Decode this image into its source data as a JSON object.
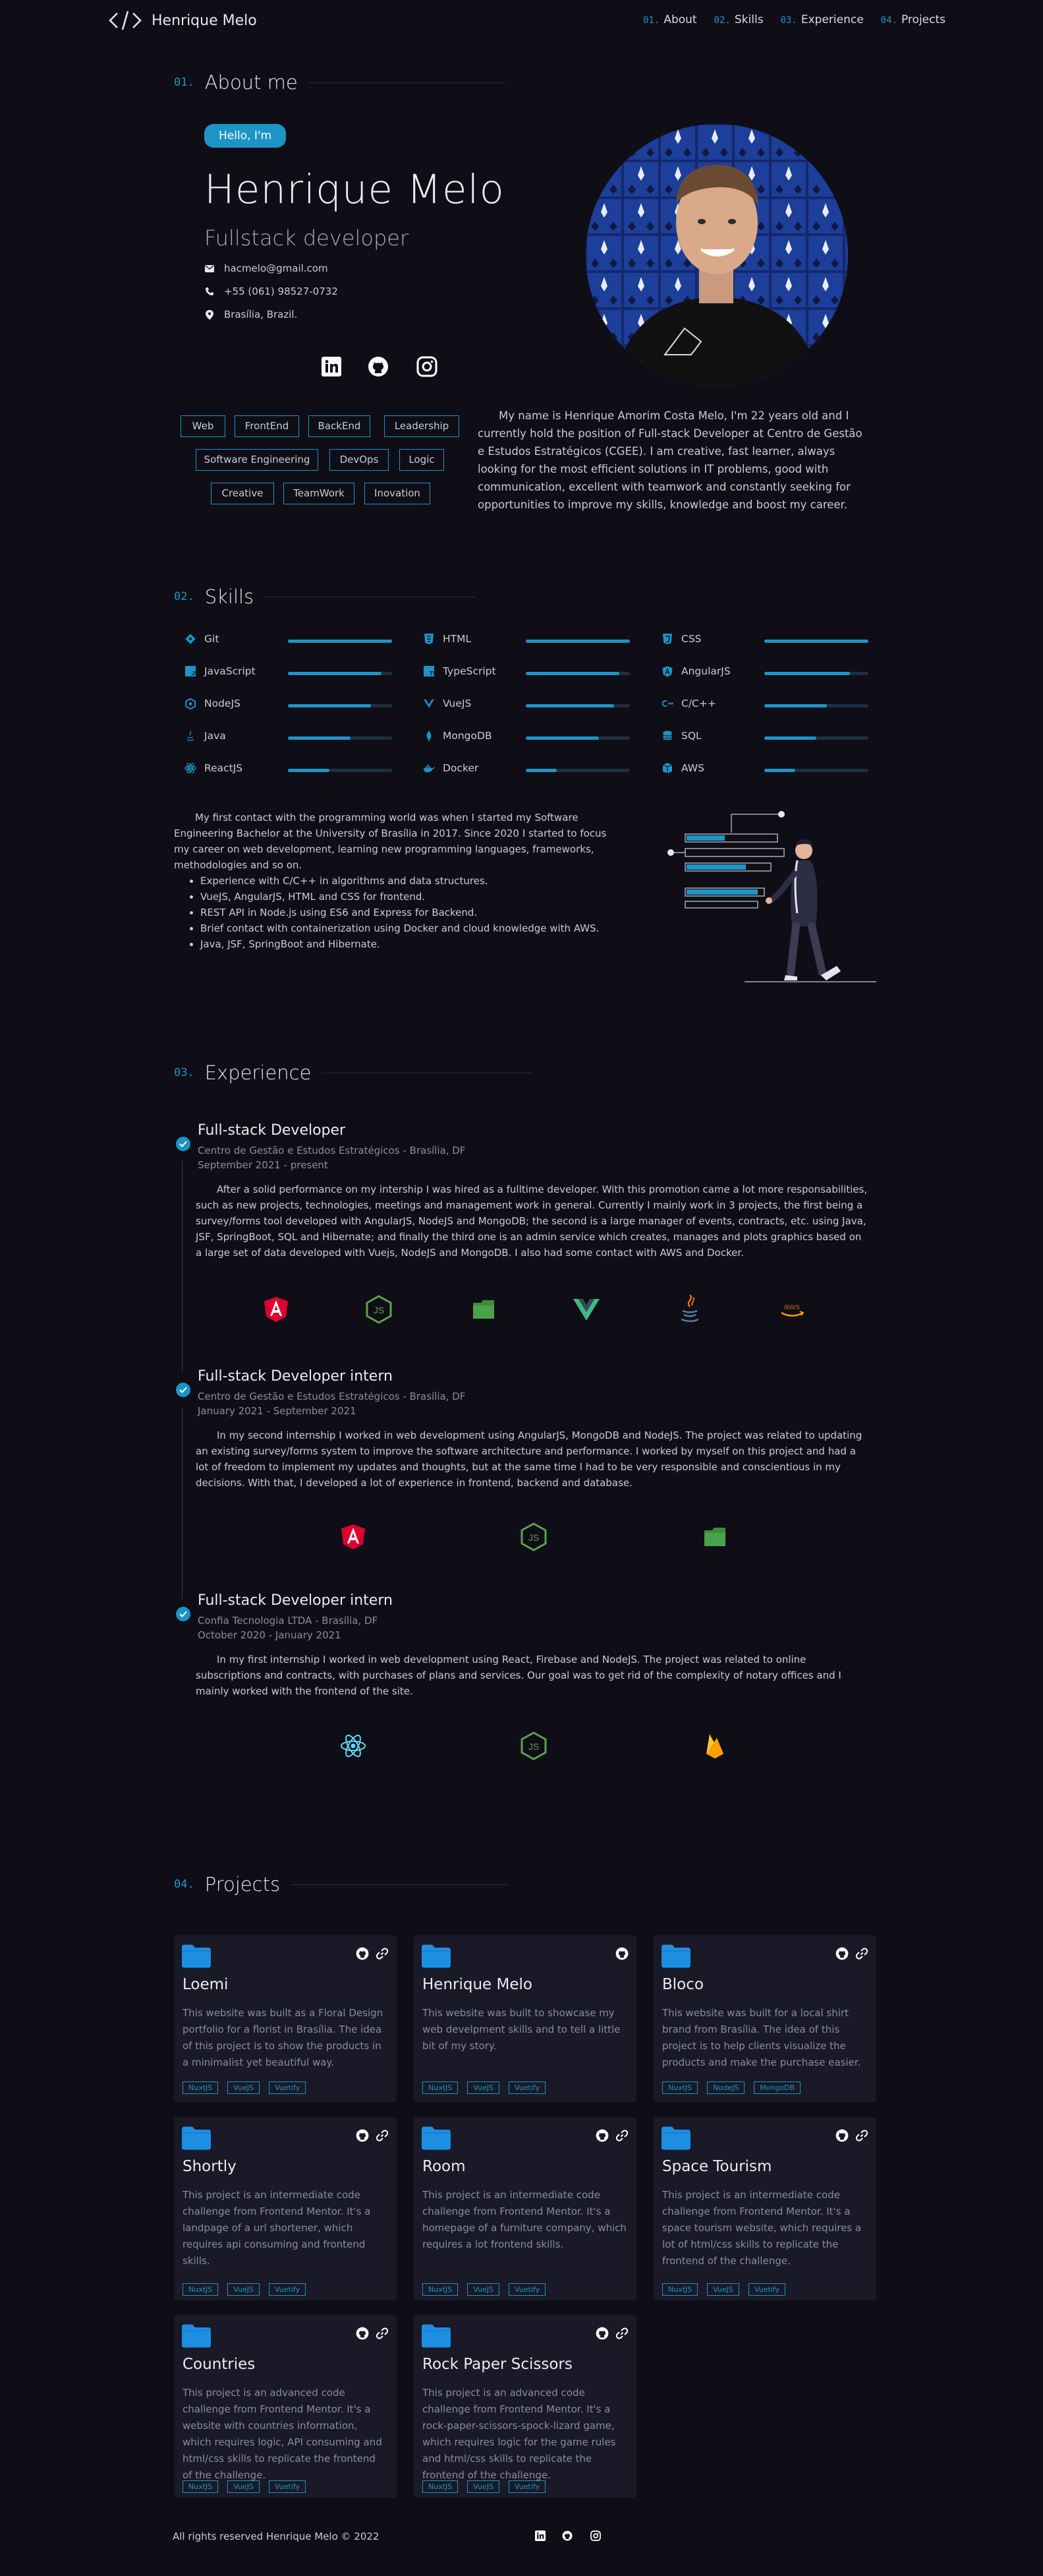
{
  "nav": {
    "brand": "Henrique Melo",
    "links": [
      {
        "num": "01.",
        "label": "About"
      },
      {
        "num": "02.",
        "label": "Skills"
      },
      {
        "num": "03.",
        "label": "Experience"
      },
      {
        "num": "04.",
        "label": "Projects"
      }
    ]
  },
  "about": {
    "num": "01.",
    "title": "About me",
    "hello": "Hello, I'm",
    "name": "Henrique Melo",
    "role": "Fullstack developer",
    "contacts": [
      {
        "icon": "mail-icon",
        "text": "hacmelo@gmail.com"
      },
      {
        "icon": "phone-icon",
        "text": "+55 (061) 98527-0732"
      },
      {
        "icon": "location-icon",
        "text": "Brasília, Brazil."
      }
    ],
    "social": [
      "linkedin-icon",
      "github-icon",
      "instagram-icon"
    ],
    "tags": [
      "Web",
      "FrontEnd",
      "BackEnd",
      "Leadership",
      "Software Engineering",
      "DevOps",
      "Logic",
      "Creative",
      "TeamWork",
      "Inovation"
    ],
    "bio": "My name is Henrique Amorim Costa Melo, I'm 22 years old and I currently hold the position of Full-stack Developer at Centro de Gestão e Estudos Estratégicos (CGEE). I am creative, fast learner, always looking for the most efficient solutions in IT problems, good with communication, excellent with teamwork and constantly seeking for opportunities to improve my skills, knowledge and boost my career."
  },
  "skills": {
    "num": "02.",
    "title": "Skills",
    "items": [
      {
        "name": "Git",
        "icon": "git-icon",
        "level": 1.0
      },
      {
        "name": "HTML",
        "icon": "html-icon",
        "level": 1.0
      },
      {
        "name": "CSS",
        "icon": "css-icon",
        "level": 1.0
      },
      {
        "name": "JavaScript",
        "icon": "javascript-icon",
        "level": 0.9
      },
      {
        "name": "TypeScript",
        "icon": "typescript-icon",
        "level": 0.9
      },
      {
        "name": "AngularJS",
        "icon": "angular-icon",
        "level": 0.82
      },
      {
        "name": "NodeJS",
        "icon": "nodejs-icon",
        "level": 0.8
      },
      {
        "name": "VueJS",
        "icon": "vue-icon",
        "level": 0.85
      },
      {
        "name": "C/C++",
        "icon": "cpp-icon",
        "level": 0.6
      },
      {
        "name": "Java",
        "icon": "java-icon",
        "level": 0.6
      },
      {
        "name": "MongoDB",
        "icon": "mongodb-icon",
        "level": 0.7
      },
      {
        "name": "SQL",
        "icon": "database-icon",
        "level": 0.5
      },
      {
        "name": "ReactJS",
        "icon": "react-icon",
        "level": 0.4
      },
      {
        "name": "Docker",
        "icon": "docker-icon",
        "level": 0.3
      },
      {
        "name": "AWS",
        "icon": "aws-icon",
        "level": 0.3
      }
    ],
    "intro": "My first contact with the programming world was when I started my Software Engineering Bachelor at the University of Brasília in 2017. Since 2020 I started to focus my career on web development, learning new programming languages, frameworks, methodologies and so on.",
    "bullets": [
      "Experience with C/C++ in algorithms and data structures.",
      "VueJS, AngularJS, HTML and CSS for frontend.",
      "REST API in Node.js using ES6 and Express for Backend.",
      "Brief contact with containerization using Docker and cloud knowledge with AWS.",
      "Java, JSF, SpringBoot and Hibernate."
    ]
  },
  "experience": {
    "num": "03.",
    "title": "Experience",
    "jobs": [
      {
        "title": "Full-stack Developer",
        "company": "Centro de Gestão e Estudos Estratégicos - Brasília, DF",
        "period": "September 2021 - present",
        "text": "After a solid performance on my intership I was hired as a fulltime developer. With this promotion came a lot more responsabilities, such as new projects, technologies, meetings and management work in general. Currently I mainly work in 3 projects, the first being a survey/forms tool developed with AngularJS, NodeJS and MongoDB; the second is a large manager of events, contracts, etc. using Java, JSF, SpringBoot, SQL and Hibernate; and finally the third one is an admin service which creates, manages and plots graphics based on a large set of data developed with Vuejs, NodeJS and MongoDB. I also had some contact with AWS and Docker.",
        "tech": [
          "angular-icon",
          "nodejs-icon",
          "mongodb-icon",
          "vue-icon",
          "java-icon",
          "aws-icon"
        ]
      },
      {
        "title": "Full-stack Developer intern",
        "company": "Centro de Gestão e Estudos Estratégicos - Brasília, DF",
        "period": "January 2021 - September 2021",
        "text": "In my second internship I worked in web development using AngularJS, MongoDB and NodeJS. The project was related to updating an existing survey/forms system to improve the software architecture and performance. I worked by myself on this project and had a lot of freedom to implement my updates and thoughts, but at the same time I had to be very responsible and conscientious in my decisions. With that, I developed a lot of experience in frontend, backend and database.",
        "tech": [
          "angular-icon",
          "nodejs-icon",
          "mongodb-icon"
        ]
      },
      {
        "title": "Full-stack Developer intern",
        "company": "Confia Tecnologia LTDA - Brasília, DF",
        "period": "October 2020 - January 2021",
        "text": "In my first internship I worked in web development using React, Firebase and NodeJS. The project was related to online subscriptions and contracts, with purchases of plans and services. Our goal was to get rid of the complexity of notary offices and I mainly worked with the frontend of the site.",
        "tech": [
          "react-icon",
          "nodejs-icon",
          "firebase-icon"
        ]
      }
    ]
  },
  "projects": {
    "num": "04.",
    "title": "Projects",
    "items": [
      {
        "title": "Loemi",
        "desc": "This website was built as a Floral Design portfolio for a florist in Brasília. The idea of this project is to show the products in a minimalist yet beautiful way.",
        "tech": [
          "NuxtJS",
          "VueJS",
          "Vuetify"
        ],
        "links": 2
      },
      {
        "title": "Henrique Melo",
        "desc": "This website was built to showcase my web develpment skills and to tell a little bit of my story.",
        "tech": [
          "NuxtJS",
          "VueJS",
          "Vuetify"
        ],
        "links": 1
      },
      {
        "title": "Bloco",
        "desc": "This website was built for a local shirt brand from Brasília. The idea of this project is to help clients visualize the products and make the purchase easier.",
        "tech": [
          "NuxtJS",
          "NodeJS",
          "MongoDB"
        ],
        "links": 2
      },
      {
        "title": "Shortly",
        "desc": "This project is an intermediate code challenge from Frontend Mentor. It's a landpage of a url shortener, which requires api consuming and frontend skills.",
        "tech": [
          "NuxtJS",
          "VueJS",
          "Vuetify"
        ],
        "links": 2
      },
      {
        "title": "Room",
        "desc": "This project is an intermediate code challenge from Frontend Mentor. It's a homepage of a furniture company, which requires a lot frontend skills.",
        "tech": [
          "NuxtJS",
          "VueJS",
          "Vuetify"
        ],
        "links": 2
      },
      {
        "title": "Space Tourism",
        "desc": "This project is an intermediate code challenge from Frontend Mentor. It's a space tourism website, which requires a lot of html/css skills to replicate the frontend of the challenge.",
        "tech": [
          "NuxtJS",
          "VueJS",
          "Vuetify"
        ],
        "links": 2
      },
      {
        "title": "Countries",
        "desc": "This project is an advanced code challenge from Frontend Mentor. It's a website with countries information, which requires logic, API consuming and html/css skills to replicate the frontend of the challenge.",
        "tech": [
          "NuxtJS",
          "VueJS",
          "Vuetify"
        ],
        "links": 2
      },
      {
        "title": "Rock Paper Scissors",
        "desc": "This project is an advanced code challenge from Frontend Mentor. It's a rock-paper-scissors-spock-lizard game, which requires logic for the game rules and html/css skills to replicate the frontend of the challenge.",
        "tech": [
          "NuxtJS",
          "VueJS",
          "Vuetify"
        ],
        "links": 2
      }
    ]
  },
  "footer": {
    "text": "All rights reserved Henrique Melo © 2022",
    "social": [
      "linkedin-icon",
      "github-icon",
      "instagram-icon"
    ]
  },
  "colors": {
    "background": "#0f0e17",
    "accent": "#1d94c5",
    "card": "#191927"
  }
}
